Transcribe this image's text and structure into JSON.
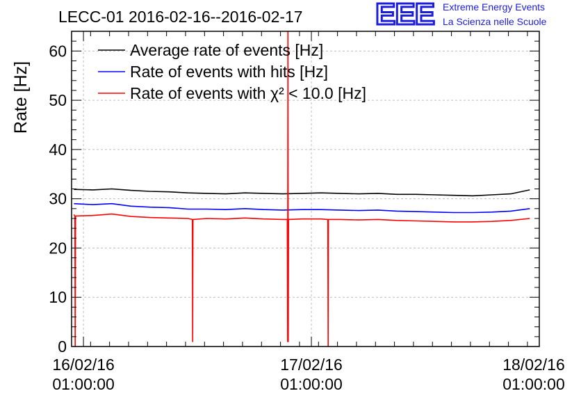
{
  "chart_data": {
    "type": "line",
    "title": "LECC-01 2016-02-16--2016-02-17",
    "ylabel": "Rate [Hz]",
    "xlabel": "",
    "ylim": [
      0,
      64
    ],
    "xlim": [
      "2016-02-15 23:45",
      "2016-02-18 01:00"
    ],
    "x_ticks": [
      {
        "x": "2016-02-16 01:00",
        "line1": "16/02/16",
        "line2": "01:00:00"
      },
      {
        "x": "2016-02-17 01:00",
        "line1": "17/02/16",
        "line2": "01:00:00"
      },
      {
        "x": "2016-02-18 01:00",
        "line1": "18/02/16",
        "line2": "01:00:00"
      }
    ],
    "y_ticks": [
      0,
      10,
      20,
      30,
      40,
      50,
      60
    ],
    "grid": true,
    "legend_position": "top-left",
    "series": [
      {
        "name": "Average rate of events [Hz]",
        "color": "#000000",
        "x": [
          "2016-02-16 00:00",
          "2016-02-16 02:00",
          "2016-02-16 04:00",
          "2016-02-16 06:00",
          "2016-02-16 08:00",
          "2016-02-16 10:00",
          "2016-02-16 12:00",
          "2016-02-16 14:00",
          "2016-02-16 16:00",
          "2016-02-16 18:00",
          "2016-02-16 20:00",
          "2016-02-16 22:00",
          "2016-02-17 00:00",
          "2016-02-17 02:00",
          "2016-02-17 04:00",
          "2016-02-17 06:00",
          "2016-02-17 08:00",
          "2016-02-17 10:00",
          "2016-02-17 12:00",
          "2016-02-17 14:00",
          "2016-02-17 16:00",
          "2016-02-17 18:00",
          "2016-02-17 20:00",
          "2016-02-17 22:00",
          "2016-02-18 00:00"
        ],
        "values": [
          31.9,
          31.8,
          32.0,
          31.7,
          31.5,
          31.4,
          31.2,
          31.1,
          31.0,
          31.2,
          31.1,
          31.0,
          31.1,
          31.2,
          31.1,
          31.0,
          31.1,
          30.9,
          30.9,
          30.8,
          30.7,
          30.6,
          30.8,
          31.0,
          31.8
        ]
      },
      {
        "name": "Rate of events with hits [Hz]",
        "color": "#0000ff",
        "x": [
          "2016-02-16 00:00",
          "2016-02-16 02:00",
          "2016-02-16 04:00",
          "2016-02-16 06:00",
          "2016-02-16 08:00",
          "2016-02-16 10:00",
          "2016-02-16 12:00",
          "2016-02-16 14:00",
          "2016-02-16 16:00",
          "2016-02-16 18:00",
          "2016-02-16 20:00",
          "2016-02-16 22:00",
          "2016-02-17 00:00",
          "2016-02-17 02:00",
          "2016-02-17 04:00",
          "2016-02-17 06:00",
          "2016-02-17 08:00",
          "2016-02-17 10:00",
          "2016-02-17 12:00",
          "2016-02-17 14:00",
          "2016-02-17 16:00",
          "2016-02-17 18:00",
          "2016-02-17 20:00",
          "2016-02-17 22:00",
          "2016-02-18 00:00"
        ],
        "values": [
          29.0,
          28.8,
          29.0,
          28.5,
          28.3,
          28.2,
          27.9,
          27.9,
          27.8,
          28.0,
          27.8,
          27.7,
          27.8,
          27.8,
          27.7,
          27.6,
          27.7,
          27.5,
          27.4,
          27.3,
          27.2,
          27.2,
          27.3,
          27.5,
          28.0
        ]
      },
      {
        "name": "Rate of events with χ² < 10.0 [Hz]",
        "color": "#ff0000",
        "x": [
          "2016-02-16 00:00",
          "2016-02-16 00:06",
          "2016-02-16 00:08",
          "2016-02-16 00:10",
          "2016-02-16 02:00",
          "2016-02-16 04:00",
          "2016-02-16 06:00",
          "2016-02-16 08:00",
          "2016-02-16 10:00",
          "2016-02-16 12:00",
          "2016-02-16 12:28",
          "2016-02-16 12:30",
          "2016-02-16 12:32",
          "2016-02-16 14:00",
          "2016-02-16 16:00",
          "2016-02-16 18:00",
          "2016-02-16 20:00",
          "2016-02-16 22:00",
          "2016-02-16 22:28",
          "2016-02-16 22:30",
          "2016-02-16 22:32",
          "2016-02-16 22:34",
          "2016-02-16 22:36",
          "2016-02-17 00:00",
          "2016-02-17 02:00",
          "2016-02-17 02:44",
          "2016-02-17 02:46",
          "2016-02-17 02:48",
          "2016-02-17 04:00",
          "2016-02-17 06:00",
          "2016-02-17 08:00",
          "2016-02-17 10:00",
          "2016-02-17 12:00",
          "2016-02-17 14:00",
          "2016-02-17 16:00",
          "2016-02-17 18:00",
          "2016-02-17 20:00",
          "2016-02-17 22:00",
          "2016-02-18 00:00"
        ],
        "values": [
          26.8,
          26.5,
          0,
          26.5,
          26.6,
          26.9,
          26.4,
          26.2,
          26.1,
          26.0,
          25.8,
          1,
          25.8,
          26.0,
          25.9,
          26.1,
          25.9,
          25.8,
          25.8,
          1,
          64,
          1,
          25.8,
          25.9,
          25.9,
          25.8,
          0,
          25.8,
          25.8,
          25.7,
          25.8,
          25.6,
          25.5,
          25.4,
          25.3,
          25.3,
          25.4,
          25.6,
          26.0
        ]
      }
    ]
  },
  "logo": {
    "mark": "EEE",
    "line1": "Extreme Energy Events",
    "line2": "La Scienza nelle Scuole",
    "color": "#1c1cdc"
  }
}
